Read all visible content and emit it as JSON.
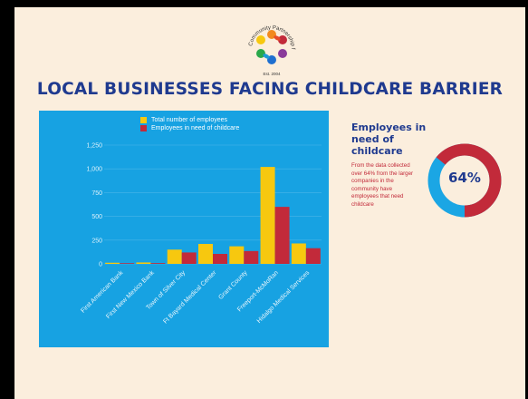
{
  "title": "LOCAL BUSINESSES FACING CHILDCARE BARRIER",
  "logo": {
    "text": "Community Partnership for Children",
    "est": "Est. 2004"
  },
  "colors": {
    "background": "#fbeedd",
    "title": "#1f3a8f",
    "chart_bg": "#17a2e2",
    "total": "#f7c80f",
    "need": "#c22a3a",
    "donut_rest": "#1ba6e4"
  },
  "side": {
    "heading": "Employees in need of childcare",
    "text": "From the data collected over 64% from the larger companies in the community have employees that need childcare",
    "donut_value": "64%",
    "donut_fraction": 0.64
  },
  "chart_data": {
    "type": "bar",
    "title": "",
    "xlabel": "",
    "ylabel": "",
    "categories": [
      "First American Bank",
      "First New Mexico Bank",
      "Town of Silver City",
      "Ft Bayard Medical Center",
      "Grant County",
      "Freeport-McMoRan",
      "Hidalgo Medical Services"
    ],
    "series": [
      {
        "name": "Total number of employees",
        "values": [
          12,
          15,
          150,
          210,
          185,
          1020,
          215
        ]
      },
      {
        "name": "Employees in need of childcare",
        "values": [
          7,
          8,
          120,
          105,
          135,
          600,
          165
        ]
      }
    ],
    "ylim": [
      0,
      1250
    ],
    "yticks": [
      0,
      250,
      500,
      750,
      1000,
      1250
    ],
    "ytick_labels": [
      "0",
      "250",
      "500",
      "750",
      "1,000",
      "1,250"
    ],
    "grid": true,
    "legend_position": "top"
  }
}
